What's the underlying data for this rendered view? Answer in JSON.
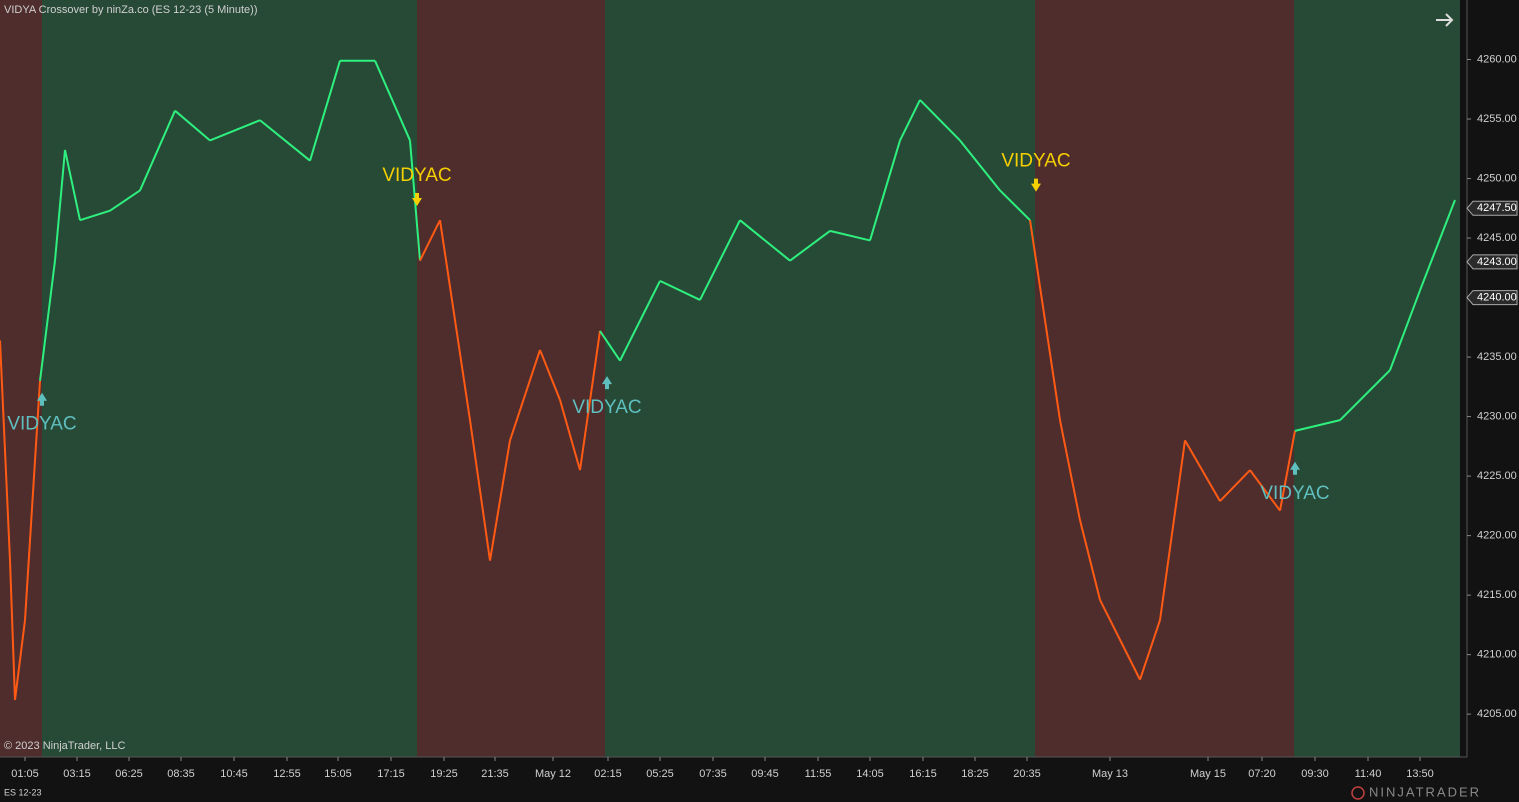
{
  "title": "VIDYA Crossover by ninZa.co (ES 12-23 (5 Minute))",
  "copyright": "© 2023 NinjaTrader, LLC",
  "instrument": "ES 12-23",
  "brand": "NINJATRADER",
  "chart_data": {
    "type": "line",
    "x": [
      0,
      2,
      3,
      5,
      8,
      11,
      13,
      16,
      22,
      28,
      35,
      42,
      52,
      62,
      68,
      75,
      82,
      84,
      88,
      94,
      98,
      102,
      108,
      112,
      116,
      120,
      124,
      132,
      140,
      148,
      158,
      166,
      174,
      180,
      184,
      192,
      200,
      206,
      209,
      212,
      216,
      220,
      228,
      232,
      237,
      244,
      250,
      256,
      259,
      268,
      278,
      284,
      291
    ],
    "values": [
      4236.4,
      4217.9,
      4206.2,
      4212.9,
      4233.0,
      4243.1,
      4252.4,
      4246.5,
      4247.3,
      4249.0,
      4255.7,
      4253.2,
      4254.9,
      4251.5,
      4259.9,
      4259.9,
      4253.2,
      4243.1,
      4246.5,
      4229.7,
      4217.9,
      4228.0,
      4235.6,
      4231.4,
      4225.5,
      4237.2,
      4234.7,
      4241.4,
      4239.8,
      4246.5,
      4243.1,
      4245.6,
      4244.8,
      4253.2,
      4256.6,
      4253.2,
      4249.0,
      4246.5,
      4238.1,
      4229.7,
      4221.3,
      4214.6,
      4207.9,
      4212.9,
      4228.0,
      4222.9,
      4225.5,
      4222.1,
      4228.8,
      4229.7,
      4233.9,
      4240.6,
      4248.2
    ],
    "xlim": [
      0,
      293.4
    ],
    "xticks": [
      {
        "value": 5,
        "label": "01:05"
      },
      {
        "value": 15.4,
        "label": "03:15"
      },
      {
        "value": 25.8,
        "label": "06:25"
      },
      {
        "value": 36.2,
        "label": "08:35"
      },
      {
        "value": 46.8,
        "label": "10:45"
      },
      {
        "value": 57.4,
        "label": "12:55"
      },
      {
        "value": 67.6,
        "label": "15:05"
      },
      {
        "value": 78.2,
        "label": "17:15"
      },
      {
        "value": 88.8,
        "label": "19:25"
      },
      {
        "value": 99,
        "label": "21:35"
      },
      {
        "value": 110.6,
        "label": "May 12"
      },
      {
        "value": 121.6,
        "label": "02:15"
      },
      {
        "value": 132,
        "label": "05:25"
      },
      {
        "value": 142.6,
        "label": "07:35"
      },
      {
        "value": 153,
        "label": "09:45"
      },
      {
        "value": 163.6,
        "label": "11:55"
      },
      {
        "value": 174,
        "label": "14:05"
      },
      {
        "value": 184.6,
        "label": "16:15"
      },
      {
        "value": 195,
        "label": "18:25"
      },
      {
        "value": 205.4,
        "label": "20:35"
      },
      {
        "value": 222,
        "label": "May 13"
      },
      {
        "value": 241.6,
        "label": "May 15"
      },
      {
        "value": 252.4,
        "label": "07:20"
      },
      {
        "value": 263,
        "label": "09:30"
      },
      {
        "value": 273.6,
        "label": "11:40"
      },
      {
        "value": 284,
        "label": "13:50"
      }
    ],
    "ylim": [
      4201.4,
      4265
    ],
    "yticks": [
      {
        "value": 4205,
        "label": "4205.00"
      },
      {
        "value": 4210,
        "label": "4210.00"
      },
      {
        "value": 4215,
        "label": "4215.00"
      },
      {
        "value": 4220,
        "label": "4220.00"
      },
      {
        "value": 4225,
        "label": "4225.00"
      },
      {
        "value": 4230,
        "label": "4230.00"
      },
      {
        "value": 4235,
        "label": "4235.00"
      },
      {
        "value": 4240,
        "label": "4240.00"
      },
      {
        "value": 4245,
        "label": "4245.00"
      },
      {
        "value": 4250,
        "label": "4250.00"
      },
      {
        "value": 4255,
        "label": "4255.00"
      },
      {
        "value": 4260,
        "label": "4260.00"
      }
    ],
    "regions": [
      {
        "x": [
          0,
          8.4
        ],
        "color": "#4f2d2d",
        "line_color": "#ff5a14"
      },
      {
        "x": [
          8.4,
          83.4
        ],
        "color": "#274a37",
        "line_color": "#2ef07e"
      },
      {
        "x": [
          83.4,
          121
        ],
        "color": "#4f2d2d",
        "line_color": "#ff5a14"
      },
      {
        "x": [
          121,
          207
        ],
        "color": "#274a37",
        "line_color": "#2ef07e"
      },
      {
        "x": [
          207,
          258.8
        ],
        "color": "#4f2d2d",
        "line_color": "#ff5a14"
      },
      {
        "x": [
          258.8,
          292
        ],
        "color": "#274a37",
        "line_color": "#2ef07e"
      }
    ],
    "signals": [
      {
        "label": "VIDYAC",
        "x": 8.4,
        "value": 4231.5,
        "direction": "up",
        "color": "#5fbfbf"
      },
      {
        "label": "VIDYAC",
        "x": 83.4,
        "value": 4248.2,
        "direction": "down",
        "color": "#f5d000"
      },
      {
        "label": "VIDYAC",
        "x": 121.4,
        "value": 4232.9,
        "direction": "up",
        "color": "#5fbfbf"
      },
      {
        "label": "VIDYAC",
        "x": 207.2,
        "value": 4249.4,
        "direction": "down",
        "color": "#f5d000"
      },
      {
        "label": "VIDYAC",
        "x": 259,
        "value": 4225.7,
        "direction": "up",
        "color": "#5fbfbf"
      }
    ],
    "price_labels": [
      {
        "value": 4247.5,
        "label": "4247.50"
      },
      {
        "value": 4243,
        "label": "4243.00"
      },
      {
        "value": 4240,
        "label": "4240.00"
      }
    ],
    "grid": false
  }
}
